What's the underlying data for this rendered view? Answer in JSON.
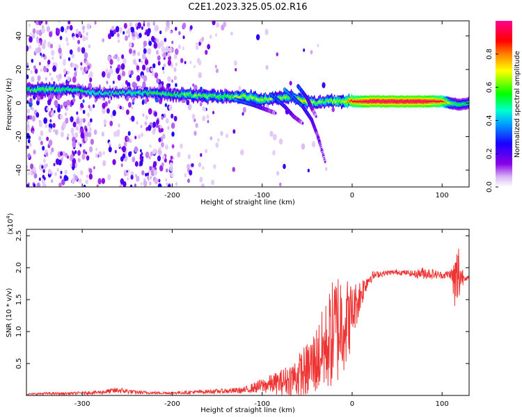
{
  "figure": {
    "title": "C2E1.2023.325.05.02.R16"
  },
  "chart_data": [
    {
      "type": "heatmap",
      "title": "",
      "xlabel": "Height of straight line (km)",
      "ylabel": "Frequency (Hz)",
      "xlim": [
        -362,
        130
      ],
      "ylim": [
        -50,
        49
      ],
      "xticks": [
        -300,
        -200,
        -100,
        0,
        100
      ],
      "xtick_labels": [
        "-300",
        "-200",
        "-100",
        "0",
        "100"
      ],
      "yticks": [
        -40,
        -20,
        0,
        20,
        40
      ],
      "ytick_labels": [
        "-40",
        "-20",
        "0",
        "20",
        "40"
      ],
      "colorbar": {
        "label": "Normalized spectral amplitude",
        "range": [
          0,
          1
        ],
        "ticks": [
          0,
          0.2,
          0.4,
          0.6,
          0.8
        ],
        "tick_labels": [
          "0.0",
          "0.2",
          "0.4",
          "0.6",
          "0.8"
        ],
        "colormap": "rainbow (white-violet-blue-cyan-green-yellow-red-magenta)"
      },
      "features": {
        "main_ridge": [
          {
            "x": -360,
            "y": 8,
            "amp": 0.45
          },
          {
            "x": -340,
            "y": 8,
            "amp": 0.5
          },
          {
            "x": -320,
            "y": 8,
            "amp": 0.45
          },
          {
            "x": -300,
            "y": 7,
            "amp": 0.4
          },
          {
            "x": -280,
            "y": 6,
            "amp": 0.4
          },
          {
            "x": -260,
            "y": 6,
            "amp": 0.4
          },
          {
            "x": -240,
            "y": 6,
            "amp": 0.4
          },
          {
            "x": -220,
            "y": 6,
            "amp": 0.45
          },
          {
            "x": -200,
            "y": 5,
            "amp": 0.45
          },
          {
            "x": -180,
            "y": 5,
            "amp": 0.5
          },
          {
            "x": -160,
            "y": 4,
            "amp": 0.5
          },
          {
            "x": -140,
            "y": 4,
            "amp": 0.5
          },
          {
            "x": -120,
            "y": 4,
            "amp": 0.55
          },
          {
            "x": -100,
            "y": 2,
            "amp": 0.55
          },
          {
            "x": -80,
            "y": 3,
            "amp": 0.5
          },
          {
            "x": -70,
            "y": 4,
            "amp": 0.55
          },
          {
            "x": -60,
            "y": 2,
            "amp": 0.6
          },
          {
            "x": -50,
            "y": 1,
            "amp": 0.6
          },
          {
            "x": -40,
            "y": 0,
            "amp": 0.5
          },
          {
            "x": -30,
            "y": 1,
            "amp": 0.5
          },
          {
            "x": -20,
            "y": 1,
            "amp": 0.55
          },
          {
            "x": -10,
            "y": 1,
            "amp": 0.6
          },
          {
            "x": 0,
            "y": 1,
            "amp": 0.8
          },
          {
            "x": 20,
            "y": 1,
            "amp": 0.9
          },
          {
            "x": 40,
            "y": 1,
            "amp": 0.9
          },
          {
            "x": 60,
            "y": 1,
            "amp": 0.9
          },
          {
            "x": 80,
            "y": 1,
            "amp": 0.9
          },
          {
            "x": 100,
            "y": 1,
            "amp": 0.8
          },
          {
            "x": 110,
            "y": 0,
            "amp": 0.5
          },
          {
            "x": 120,
            "y": -1,
            "amp": 0.45
          },
          {
            "x": 130,
            "y": 0,
            "amp": 0.45
          }
        ],
        "descending_branches": [
          {
            "x": [
              -130,
              -110,
              -95,
              -85
            ],
            "y": [
              2,
              -1,
              -4,
              -6
            ]
          },
          {
            "x": [
              -90,
              -75,
              -65,
              -55
            ],
            "y": [
              5,
              -2,
              -8,
              -12
            ]
          },
          {
            "x": [
              -75,
              -55,
              -45,
              -38,
              -30
            ],
            "y": [
              8,
              -2,
              -10,
              -20,
              -35
            ]
          },
          {
            "x": [
              -60,
              -50,
              -45,
              -40
            ],
            "y": [
              10,
              3,
              -3,
              -8
            ]
          }
        ]
      }
    },
    {
      "type": "line",
      "title": "",
      "xlabel": "Height of straight line (km)",
      "ylabel": "SNR (10 * v/v)",
      "y_multiplier": "(x10^4)",
      "xlim": [
        -362,
        130
      ],
      "ylim": [
        0,
        2.6
      ],
      "xticks": [
        -300,
        -200,
        -100,
        0,
        100
      ],
      "xtick_labels": [
        "-300",
        "-200",
        "-100",
        "0",
        "100"
      ],
      "yticks": [
        0.5,
        1.0,
        1.5,
        2.0,
        2.5
      ],
      "ytick_labels": [
        "0.5",
        "1.0",
        "1.5",
        "2.0",
        "2.5"
      ],
      "color": "#ee3333",
      "x": [
        -362,
        -340,
        -320,
        -300,
        -280,
        -260,
        -240,
        -220,
        -200,
        -180,
        -160,
        -140,
        -120,
        -110,
        -100,
        -90,
        -80,
        -70,
        -60,
        -50,
        -40,
        -30,
        -20,
        -15,
        -10,
        -5,
        0,
        5,
        10,
        15,
        20,
        25,
        30,
        40,
        50,
        60,
        70,
        80,
        90,
        100,
        110,
        115,
        118,
        120,
        125,
        130
      ],
      "y": [
        0.02,
        0.03,
        0.03,
        0.04,
        0.05,
        0.08,
        0.05,
        0.04,
        0.04,
        0.05,
        0.06,
        0.07,
        0.08,
        0.12,
        0.15,
        0.18,
        0.2,
        0.25,
        0.3,
        0.4,
        0.55,
        0.75,
        1.0,
        1.1,
        1.2,
        1.15,
        1.3,
        1.45,
        1.6,
        1.75,
        1.85,
        1.88,
        1.9,
        1.92,
        1.93,
        1.92,
        1.9,
        1.92,
        1.9,
        1.88,
        1.9,
        1.7,
        1.9,
        1.87,
        1.85,
        1.83
      ],
      "noise_amplitude": [
        0.01,
        0.02,
        0.02,
        0.02,
        0.03,
        0.05,
        0.03,
        0.02,
        0.02,
        0.03,
        0.03,
        0.04,
        0.05,
        0.08,
        0.12,
        0.15,
        0.2,
        0.25,
        0.35,
        0.45,
        0.55,
        0.7,
        0.9,
        0.95,
        0.85,
        0.7,
        0.45,
        0.35,
        0.25,
        0.15,
        0.1,
        0.06,
        0.05,
        0.04,
        0.04,
        0.04,
        0.06,
        0.1,
        0.08,
        0.05,
        0.08,
        0.6,
        0.6,
        0.3,
        0.05,
        0.04
      ]
    }
  ]
}
